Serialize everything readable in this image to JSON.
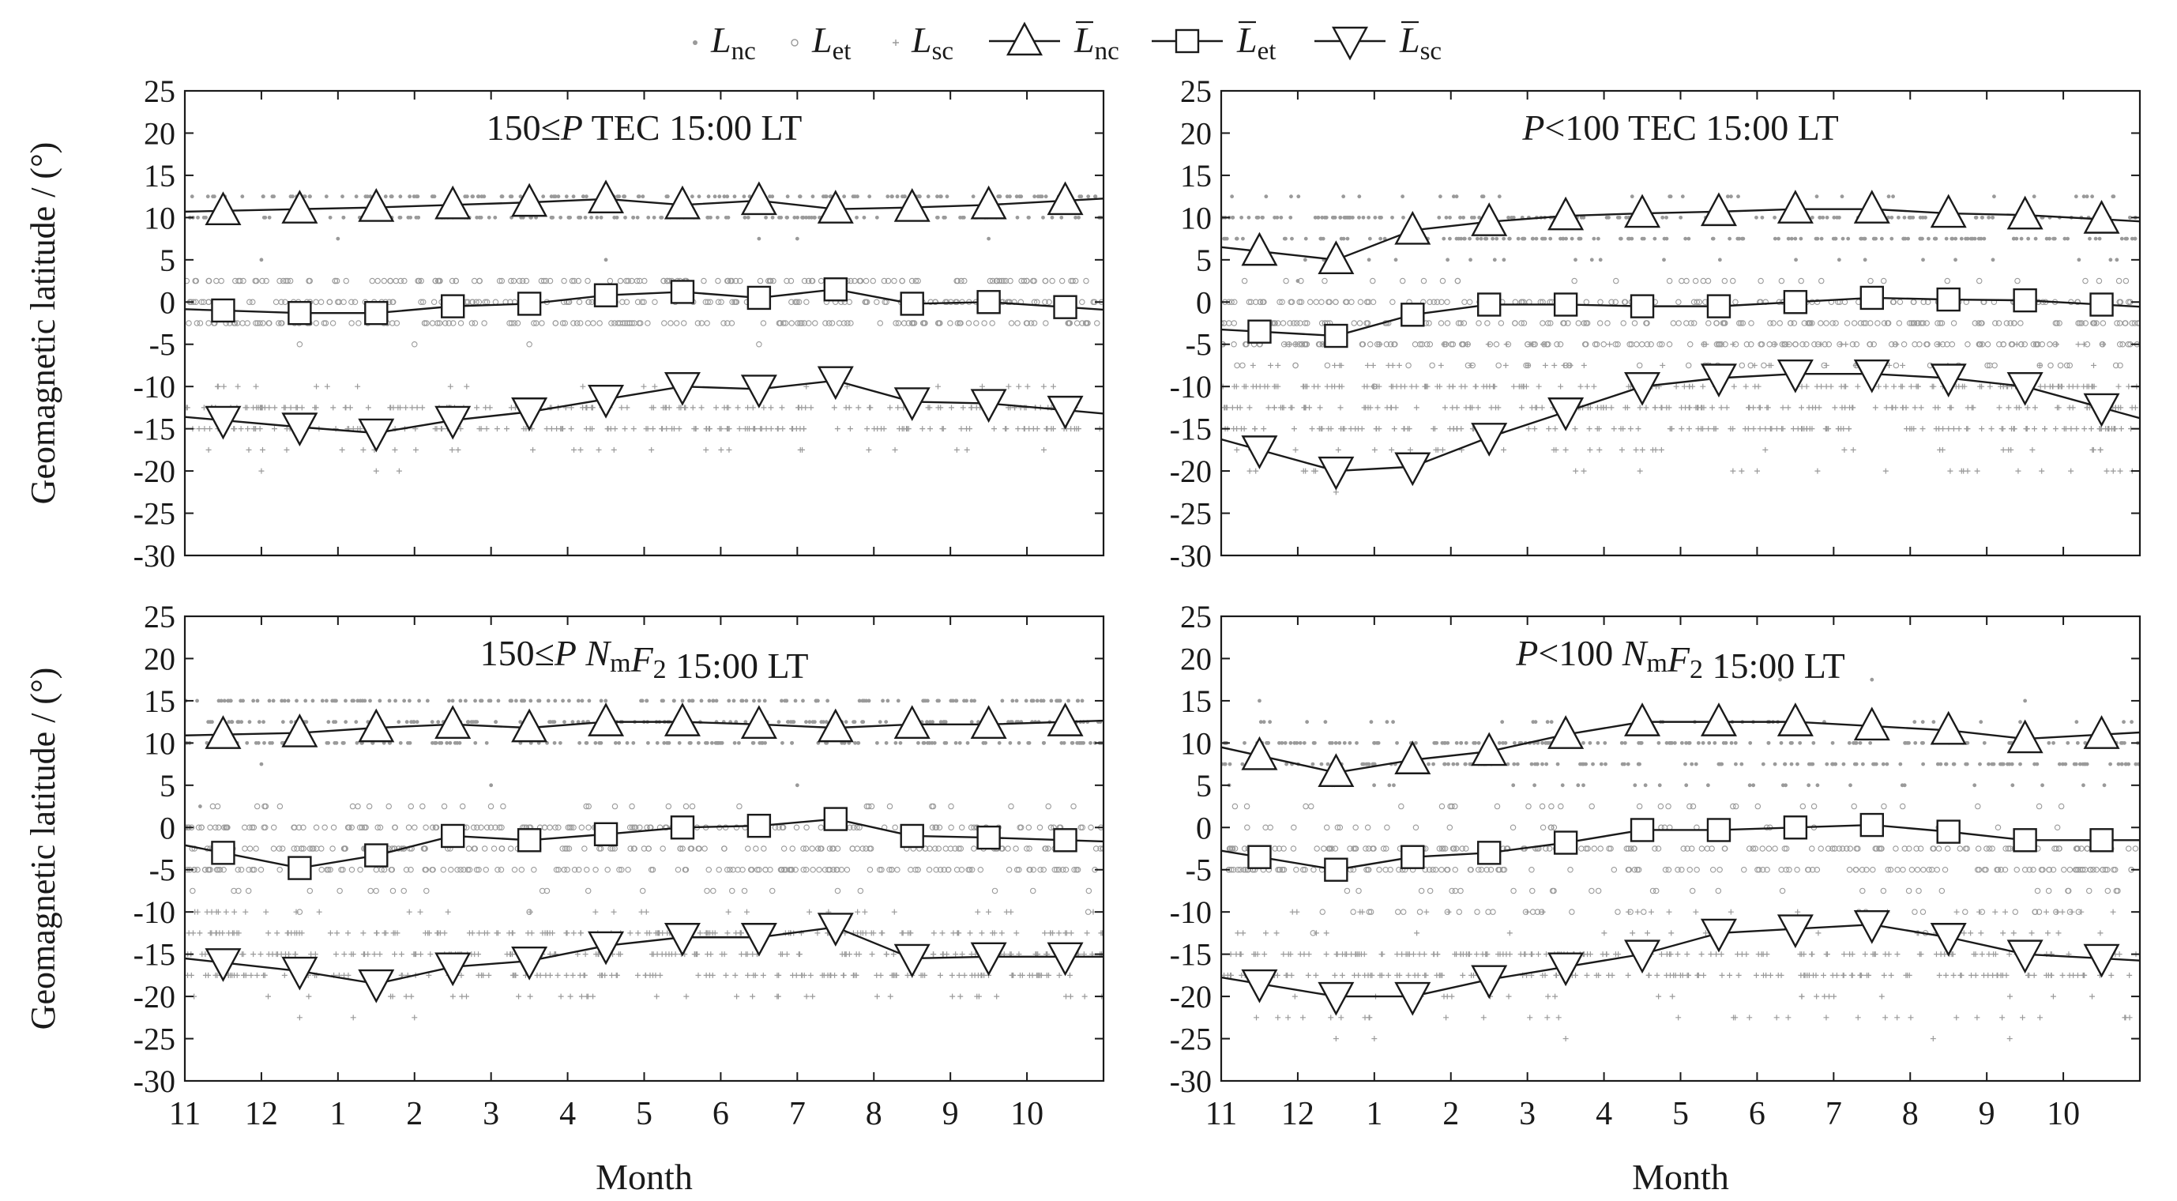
{
  "figure": {
    "ylabel": "Geomagnetic latitude / (°)",
    "xlabel": "Month",
    "month_ticks": [
      "11",
      "12",
      "1",
      "2",
      "3",
      "4",
      "5",
      "6",
      "7",
      "8",
      "9",
      "10"
    ],
    "legend": [
      {
        "base": "L",
        "sub": "nc",
        "bar": false,
        "marker": "dot"
      },
      {
        "base": "L",
        "sub": "et",
        "bar": false,
        "marker": "ring"
      },
      {
        "base": "L",
        "sub": "sc",
        "bar": false,
        "marker": "plus"
      },
      {
        "base": "L",
        "sub": "nc",
        "bar": true,
        "marker": "tri-up"
      },
      {
        "base": "L",
        "sub": "et",
        "bar": true,
        "marker": "square"
      },
      {
        "base": "L",
        "sub": "sc",
        "bar": true,
        "marker": "tri-down"
      }
    ],
    "colors": {
      "axes": "#1a1a1a",
      "scatter": "#9a9a9a",
      "mean_line": "#1a1a1a",
      "marker_fill": "#ffffff"
    }
  },
  "chart_data": [
    {
      "type": "line",
      "title": "150≤P TEC   15:00 LT",
      "title_parts": [
        [
          "n",
          "150≤"
        ],
        [
          "i",
          "P"
        ],
        [
          "n",
          " TEC   15:00 LT"
        ]
      ],
      "ylim": [
        -30,
        25
      ],
      "yticks": [
        25,
        20,
        15,
        10,
        5,
        0,
        -5,
        -10,
        -15,
        -20,
        -25,
        -30
      ],
      "xlim": [
        0,
        12
      ],
      "show_xticks": false,
      "x": [
        0.5,
        1.5,
        2.5,
        3.5,
        4.5,
        5.5,
        6.5,
        7.5,
        8.5,
        9.5,
        10.5,
        11.5
      ],
      "series": [
        {
          "name": "L̄nc",
          "marker": "tri-up",
          "values": [
            10.8,
            11.0,
            11.2,
            11.5,
            11.8,
            12.2,
            11.5,
            12.0,
            11.0,
            11.2,
            11.5,
            12.0
          ]
        },
        {
          "name": "L̄et",
          "marker": "square",
          "values": [
            -1.0,
            -1.3,
            -1.3,
            -0.5,
            -0.2,
            0.8,
            1.2,
            0.5,
            1.5,
            -0.2,
            0.0,
            -0.6
          ]
        },
        {
          "name": "L̄sc",
          "marker": "tri-down",
          "values": [
            -14.0,
            -14.8,
            -15.5,
            -14.0,
            -13.0,
            -11.5,
            -10.0,
            -10.3,
            -9.3,
            -11.8,
            -12.0,
            -12.8
          ]
        }
      ],
      "scatter_bands": {
        "nc": {
          "y": [
            10,
            12.5
          ],
          "outliers": [
            [
              7.5,
              7.5
            ],
            [
              5.5,
              5.0
            ],
            [
              1.0,
              5.0
            ],
            [
              8.0,
              7.5
            ],
            [
              2.0,
              7.5
            ],
            [
              10.5,
              7.5
            ]
          ]
        },
        "et": {
          "y": [
            -2.5,
            2.5
          ],
          "outliers": [
            [
              1.5,
              -5.0
            ],
            [
              4.5,
              -5.0
            ],
            [
              7.5,
              -5.0
            ],
            [
              9.5,
              -2.5
            ],
            [
              3.0,
              -5.0
            ]
          ]
        },
        "sc": {
          "y": [
            -17.5,
            -10
          ],
          "outliers": [
            [
              2.5,
              -20
            ],
            [
              1.0,
              -20
            ],
            [
              2.8,
              -20
            ]
          ]
        }
      }
    },
    {
      "type": "line",
      "title": "P<100 TEC   15:00 LT",
      "title_parts": [
        [
          "i",
          "P"
        ],
        [
          "n",
          "<100 TEC   15:00 LT"
        ]
      ],
      "ylim": [
        -30,
        25
      ],
      "yticks": [
        25,
        20,
        15,
        10,
        5,
        0,
        -5,
        -10,
        -15,
        -20,
        -25,
        -30
      ],
      "xlim": [
        0,
        12
      ],
      "show_xticks": false,
      "x": [
        0.5,
        1.5,
        2.5,
        3.5,
        4.5,
        5.5,
        6.5,
        7.5,
        8.5,
        9.5,
        10.5,
        11.5
      ],
      "series": [
        {
          "name": "L̄nc",
          "marker": "tri-up",
          "values": [
            6.0,
            5.0,
            8.5,
            9.5,
            10.2,
            10.5,
            10.7,
            11.0,
            11.0,
            10.5,
            10.3,
            9.8
          ]
        },
        {
          "name": "L̄et",
          "marker": "square",
          "values": [
            -3.5,
            -4.0,
            -1.5,
            -0.3,
            -0.3,
            -0.5,
            -0.5,
            0.0,
            0.5,
            0.3,
            0.2,
            -0.3
          ]
        },
        {
          "name": "L̄sc",
          "marker": "tri-down",
          "values": [
            -17.5,
            -20.0,
            -19.5,
            -16.0,
            -13.0,
            -10.0,
            -9.0,
            -8.5,
            -8.5,
            -9.0,
            -10.0,
            -12.5
          ]
        }
      ],
      "scatter_bands": {
        "nc": {
          "y": [
            5,
            12.5
          ],
          "outliers": [
            [
              1.0,
              2.5
            ],
            [
              11.9,
              7.5
            ]
          ]
        },
        "et": {
          "y": [
            -7.5,
            2.5
          ],
          "outliers": [
            [
              2.0,
              -10
            ],
            [
              0.5,
              -5
            ]
          ]
        },
        "sc": {
          "y": [
            -20,
            -5
          ],
          "outliers": [
            [
              1.5,
              -22.5
            ],
            [
              4.5,
              -17.5
            ],
            [
              11.9,
              -20
            ]
          ]
        }
      }
    },
    {
      "type": "line",
      "title": "150≤P NmF2   15:00 LT",
      "title_parts": [
        [
          "n",
          "150≤"
        ],
        [
          "i",
          "P"
        ],
        [
          "n",
          " "
        ],
        [
          "i",
          "N"
        ],
        [
          "sub",
          "m"
        ],
        [
          "i",
          "F"
        ],
        [
          "sub",
          "2"
        ],
        [
          "n",
          "   15:00 LT"
        ]
      ],
      "ylim": [
        -30,
        25
      ],
      "yticks": [
        25,
        20,
        15,
        10,
        5,
        0,
        -5,
        -10,
        -15,
        -20,
        -25,
        -30
      ],
      "xlim": [
        0,
        12
      ],
      "show_xticks": true,
      "x": [
        0.5,
        1.5,
        2.5,
        3.5,
        4.5,
        5.5,
        6.5,
        7.5,
        8.5,
        9.5,
        10.5,
        11.5
      ],
      "series": [
        {
          "name": "L̄nc",
          "marker": "tri-up",
          "values": [
            11.0,
            11.2,
            11.8,
            12.2,
            11.8,
            12.5,
            12.5,
            12.2,
            11.8,
            12.2,
            12.2,
            12.5
          ]
        },
        {
          "name": "L̄et",
          "marker": "square",
          "values": [
            -3.0,
            -4.8,
            -3.3,
            -1.0,
            -1.5,
            -0.8,
            0.0,
            0.2,
            1.0,
            -1.0,
            -1.2,
            -1.5
          ]
        },
        {
          "name": "L̄sc",
          "marker": "tri-down",
          "values": [
            -16.0,
            -17.0,
            -18.5,
            -16.5,
            -15.8,
            -14.0,
            -13.0,
            -13.0,
            -11.8,
            -15.5,
            -15.3,
            -15.3
          ]
        }
      ],
      "scatter_bands": {
        "nc": {
          "y": [
            10,
            15
          ],
          "outliers": [
            [
              1.0,
              7.5
            ],
            [
              0.2,
              2.5
            ],
            [
              4.0,
              5.0
            ],
            [
              8.0,
              5.0
            ]
          ]
        },
        "et": {
          "y": [
            -7.5,
            2.5
          ],
          "outliers": [
            [
              1.5,
              -10
            ],
            [
              4.5,
              -10
            ],
            [
              11.8,
              -10
            ]
          ]
        },
        "sc": {
          "y": [
            -20,
            -10
          ],
          "outliers": [
            [
              1.5,
              -22.5
            ],
            [
              3.0,
              -22.5
            ],
            [
              2.2,
              -22.5
            ]
          ]
        }
      }
    },
    {
      "type": "line",
      "title": "P<100 NmF2   15:00 LT",
      "title_parts": [
        [
          "i",
          "P"
        ],
        [
          "n",
          "<100 "
        ],
        [
          "i",
          "N"
        ],
        [
          "sub",
          "m"
        ],
        [
          "i",
          "F"
        ],
        [
          "sub",
          "2"
        ],
        [
          "n",
          "   15:00 LT"
        ]
      ],
      "ylim": [
        -30,
        25
      ],
      "yticks": [
        25,
        20,
        15,
        10,
        5,
        0,
        -5,
        -10,
        -15,
        -20,
        -25,
        -30
      ],
      "xlim": [
        0,
        12
      ],
      "show_xticks": true,
      "x": [
        0.5,
        1.5,
        2.5,
        3.5,
        4.5,
        5.5,
        6.5,
        7.5,
        8.5,
        9.5,
        10.5,
        11.5
      ],
      "series": [
        {
          "name": "L̄nc",
          "marker": "tri-up",
          "values": [
            8.5,
            6.5,
            8.0,
            9.0,
            11.0,
            12.5,
            12.5,
            12.5,
            12.0,
            11.5,
            10.5,
            11.0
          ]
        },
        {
          "name": "L̄et",
          "marker": "square",
          "values": [
            -3.5,
            -5.0,
            -3.5,
            -3.0,
            -1.8,
            -0.3,
            -0.3,
            0.0,
            0.3,
            -0.5,
            -1.5,
            -1.5
          ]
        },
        {
          "name": "L̄sc",
          "marker": "tri-down",
          "values": [
            -18.5,
            -20.0,
            -20.0,
            -18.0,
            -16.5,
            -15.0,
            -12.5,
            -12.0,
            -11.5,
            -13.0,
            -15.0,
            -15.5
          ]
        }
      ],
      "scatter_bands": {
        "nc": {
          "y": [
            5,
            12.5
          ],
          "outliers": [
            [
              6.5,
              20
            ],
            [
              7.3,
              17.5
            ],
            [
              8.5,
              17.5
            ],
            [
              10.5,
              15
            ],
            [
              0.5,
              15
            ]
          ]
        },
        "et": {
          "y": [
            -10,
            2.5
          ],
          "outliers": [
            [
              1.2,
              -12.5
            ],
            [
              9.2,
              -12.5
            ]
          ]
        },
        "sc": {
          "y": [
            -22.5,
            -10
          ],
          "outliers": [
            [
              1.5,
              -25
            ],
            [
              2.0,
              -25
            ],
            [
              4.5,
              -25
            ],
            [
              9.3,
              -25
            ],
            [
              10.3,
              -25
            ]
          ]
        }
      }
    }
  ]
}
